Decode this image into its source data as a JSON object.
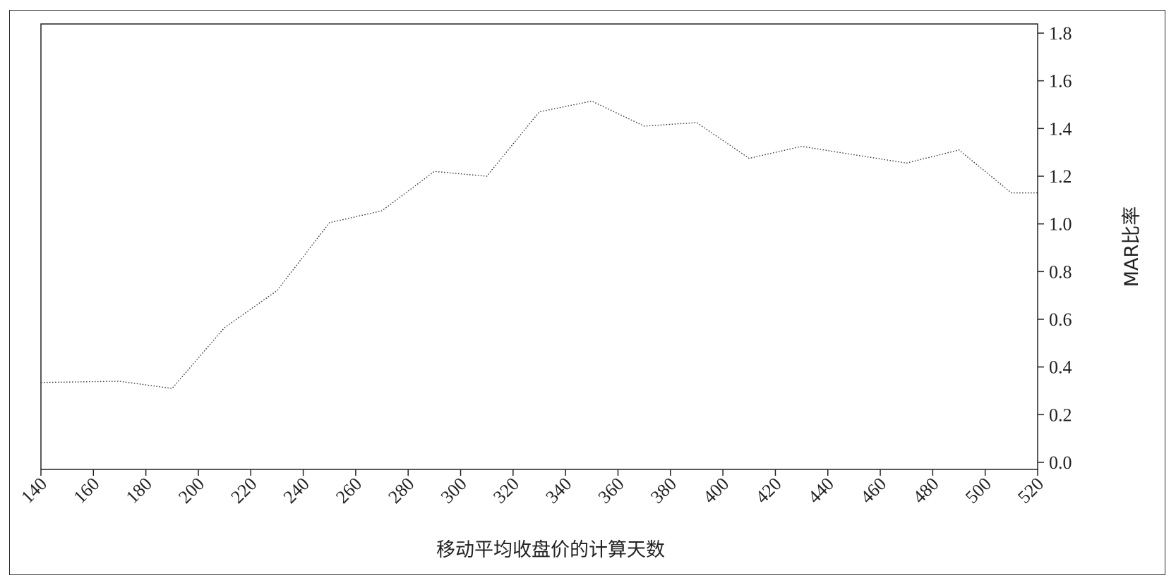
{
  "chart_data": {
    "type": "line",
    "title": "",
    "xlabel": "移动平均收盘价的计算天数",
    "ylabel": "MAR比率",
    "xlim": [
      140,
      520
    ],
    "ylim": [
      0,
      1.8
    ],
    "x_ticks": [
      140,
      160,
      180,
      200,
      220,
      240,
      260,
      280,
      300,
      320,
      340,
      360,
      380,
      400,
      420,
      440,
      460,
      480,
      500,
      520
    ],
    "y_ticks": [
      0.0,
      0.2,
      0.4,
      0.6,
      0.8,
      1.0,
      1.2,
      1.4,
      1.6,
      1.8
    ],
    "y_axis_side": "right",
    "grid": false,
    "line_style": "dotted",
    "line_color": "#333333",
    "series": [
      {
        "x": [
          140,
          170,
          190,
          210,
          230,
          250,
          270,
          290,
          310,
          330,
          350,
          370,
          390,
          410,
          430,
          450,
          470,
          490,
          510,
          520
        ],
        "values": [
          0.335,
          0.34,
          0.31,
          0.565,
          0.72,
          1.005,
          1.055,
          1.22,
          1.2,
          1.47,
          1.515,
          1.41,
          1.425,
          1.275,
          1.325,
          1.29,
          1.255,
          1.31,
          1.13,
          1.13
        ]
      }
    ]
  }
}
